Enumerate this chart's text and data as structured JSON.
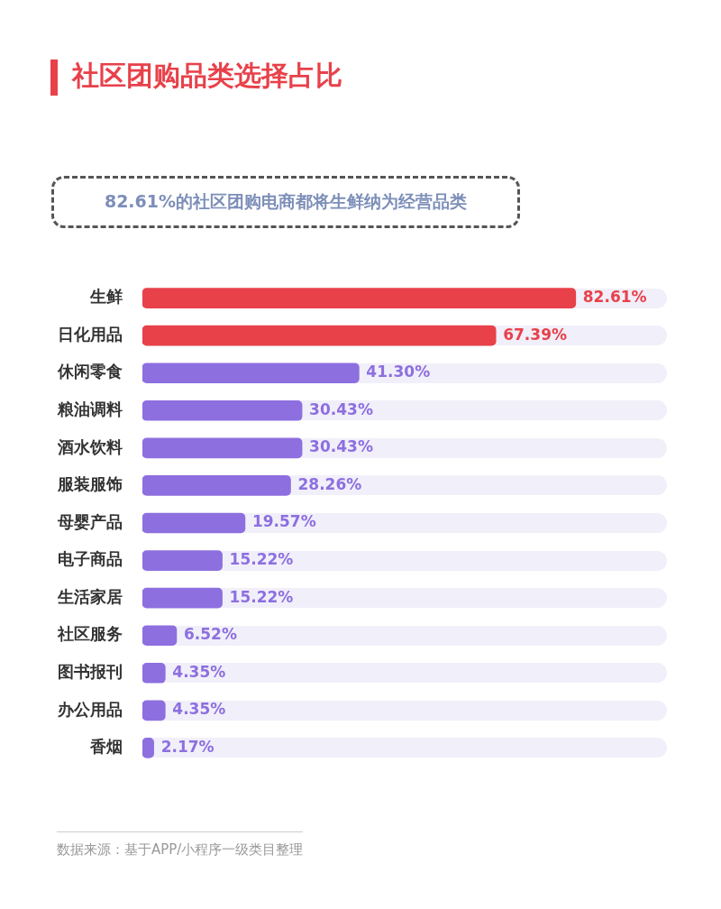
{
  "chart_data": {
    "type": "bar",
    "orientation": "horizontal",
    "title": "社区团购品类选择占比",
    "subtitle": "82.61%的社区团购电商都将生鲜纳为经营品类",
    "categories": [
      "生鲜",
      "日化用品",
      "休闲零食",
      "粮油调料",
      "酒水饮料",
      "服装服饰",
      "母婴产品",
      "电子商品",
      "生活家居",
      "社区服务",
      "图书报刊",
      "办公用品",
      "香烟"
    ],
    "values": [
      82.61,
      67.39,
      41.3,
      30.43,
      30.43,
      28.26,
      19.57,
      15.22,
      15.22,
      6.52,
      4.35,
      4.35,
      2.17
    ],
    "colors": [
      "#e8414a",
      "#e8414a",
      "#8d6fe0",
      "#8d6fe0",
      "#8d6fe0",
      "#8d6fe0",
      "#8d6fe0",
      "#8d6fe0",
      "#8d6fe0",
      "#8d6fe0",
      "#8d6fe0",
      "#8d6fe0",
      "#8d6fe0"
    ],
    "value_labels": [
      "82.61%",
      "67.39%",
      "41.30%",
      "30.43%",
      "30.43%",
      "28.26%",
      "19.57%",
      "15.22%",
      "15.22%",
      "6.52%",
      "4.35%",
      "4.35%",
      "2.17%"
    ],
    "xlim": [
      0,
      100
    ],
    "tick_labels": "y",
    "annotations": [
      "数据来源：基于APP/小程序一级类目整理"
    ]
  }
}
